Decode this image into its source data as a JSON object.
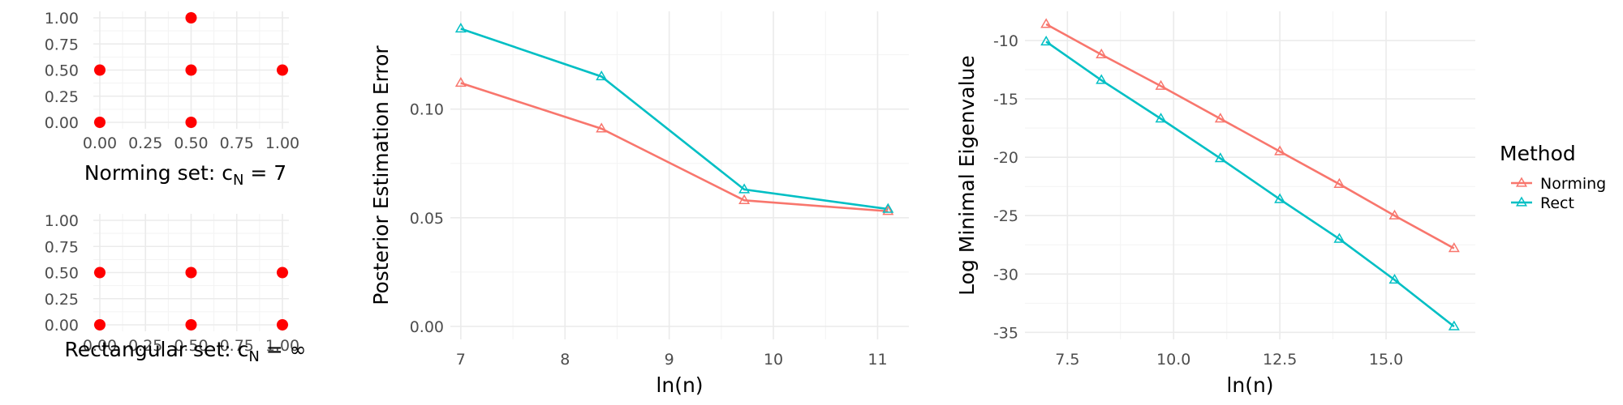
{
  "chart_data": [
    {
      "type": "scatter",
      "title": "Norming set: c_N = 7",
      "caption": "Norming set: ",
      "caption_c": "c",
      "caption_sub": "N",
      "caption_tail": " = 7",
      "xlim": [
        0,
        1
      ],
      "ylim": [
        0,
        1
      ],
      "x_ticks": [
        "0.00",
        "0.25",
        "0.50",
        "0.75",
        "1.00"
      ],
      "y_ticks": [
        "0.00",
        "0.25",
        "0.50",
        "0.75",
        "1.00"
      ],
      "point_color": "#ff0000",
      "points": [
        {
          "x": 0.0,
          "y": 0.0
        },
        {
          "x": 0.5,
          "y": 0.0
        },
        {
          "x": 0.0,
          "y": 0.5
        },
        {
          "x": 0.5,
          "y": 0.5
        },
        {
          "x": 1.0,
          "y": 0.5
        },
        {
          "x": 0.5,
          "y": 1.0
        }
      ]
    },
    {
      "type": "scatter",
      "title": "Rectangular set: c_N = ∞",
      "caption": "Rectangular set: ",
      "caption_c": "c",
      "caption_sub": "N",
      "caption_tail": " = ∞",
      "xlim": [
        0,
        1
      ],
      "ylim": [
        0,
        1
      ],
      "x_ticks": [
        "0.00",
        "0.25",
        "0.50",
        "0.75",
        "1.00"
      ],
      "y_ticks": [
        "0.00",
        "0.25",
        "0.50",
        "0.75",
        "1.00"
      ],
      "point_color": "#ff0000",
      "points": [
        {
          "x": 0.0,
          "y": 0.0
        },
        {
          "x": 0.5,
          "y": 0.0
        },
        {
          "x": 1.0,
          "y": 0.0
        },
        {
          "x": 0.0,
          "y": 0.5
        },
        {
          "x": 0.5,
          "y": 0.5
        },
        {
          "x": 1.0,
          "y": 0.5
        }
      ]
    },
    {
      "type": "line",
      "xlabel": "ln(n)",
      "ylabel": "Posterior Estimation Error",
      "xlim": [
        6.9,
        11.3
      ],
      "ylim": [
        -0.006,
        0.145
      ],
      "x_ticks": [
        7,
        8,
        9,
        10,
        11
      ],
      "x_tick_labels": [
        "7",
        "8",
        "9",
        "10",
        "11"
      ],
      "y_ticks": [
        0.0,
        0.05,
        0.1
      ],
      "y_tick_labels": [
        "0.00",
        "0.05",
        "0.10"
      ],
      "series": [
        {
          "name": "Norming",
          "color": "#f8766d",
          "x": [
            7.0,
            8.35,
            9.72,
            11.1
          ],
          "y": [
            0.112,
            0.091,
            0.058,
            0.053
          ]
        },
        {
          "name": "Rect",
          "color": "#00bfc4",
          "x": [
            7.0,
            8.35,
            9.72,
            11.1
          ],
          "y": [
            0.137,
            0.115,
            0.063,
            0.054
          ]
        }
      ]
    },
    {
      "type": "line",
      "xlabel": "ln(n)",
      "ylabel": "Log Minimal Eigenvalue",
      "xlim": [
        6.5,
        17.1
      ],
      "ylim": [
        -35.6,
        -7.5
      ],
      "x_ticks": [
        7.5,
        10.0,
        12.5,
        15.0
      ],
      "x_tick_labels": [
        "7.5",
        "10.0",
        "12.5",
        "15.0"
      ],
      "y_ticks": [
        -35,
        -30,
        -25,
        -20,
        -15,
        -10
      ],
      "y_tick_labels": [
        "-35",
        "-30",
        "-25",
        "-20",
        "-15",
        "-10"
      ],
      "series": [
        {
          "name": "Norming",
          "color": "#f8766d",
          "x": [
            7.0,
            8.3,
            9.7,
            11.1,
            12.5,
            13.9,
            15.2,
            16.6
          ],
          "y": [
            -8.6,
            -11.2,
            -13.9,
            -16.7,
            -19.5,
            -22.3,
            -25.0,
            -27.8
          ]
        },
        {
          "name": "Rect",
          "color": "#00bfc4",
          "x": [
            7.0,
            8.3,
            9.7,
            11.1,
            12.5,
            13.9,
            15.2,
            16.6
          ],
          "y": [
            -10.1,
            -13.4,
            -16.7,
            -20.1,
            -23.6,
            -27.0,
            -30.5,
            -34.5
          ]
        }
      ]
    }
  ],
  "legend": {
    "title": "Method",
    "items": [
      {
        "label": "Norming",
        "color": "#f8766d"
      },
      {
        "label": "Rect",
        "color": "#00bfc4"
      }
    ]
  }
}
